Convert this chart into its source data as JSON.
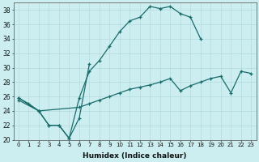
{
  "xlabel": "Humidex (Indice chaleur)",
  "background_color": "#cceef0",
  "line_color": "#1a6b6b",
  "xlim": [
    -0.5,
    23.5
  ],
  "ylim": [
    20,
    39
  ],
  "xticks": [
    0,
    1,
    2,
    3,
    4,
    5,
    6,
    7,
    8,
    9,
    10,
    11,
    12,
    13,
    14,
    15,
    16,
    17,
    18,
    19,
    20,
    21,
    22,
    23
  ],
  "yticks": [
    20,
    22,
    24,
    26,
    28,
    30,
    32,
    34,
    36,
    38
  ],
  "curves": [
    {
      "x": [
        0,
        1,
        2,
        3,
        4,
        5,
        6,
        7,
        8,
        9,
        10,
        11,
        12,
        13,
        14,
        15,
        16,
        17,
        18
      ],
      "y": [
        25.8,
        25.0,
        24.0,
        22.0,
        22.0,
        20.2,
        25.8,
        29.5,
        31.0,
        33.0,
        35.0,
        36.5,
        37.0,
        38.5,
        38.2,
        38.5,
        37.5,
        37.0,
        34.0
      ]
    },
    {
      "x": [
        0,
        2,
        3,
        4,
        5,
        6,
        7
      ],
      "y": [
        25.8,
        24.0,
        22.0,
        22.0,
        20.2,
        23.0,
        30.5
      ]
    },
    {
      "x": [
        0,
        2,
        6,
        7,
        8,
        9,
        10,
        11,
        12,
        13,
        14,
        15,
        16,
        17,
        18,
        19,
        20,
        21,
        22,
        23
      ],
      "y": [
        25.5,
        24.0,
        24.5,
        25.0,
        25.5,
        26.0,
        26.5,
        27.0,
        27.3,
        27.6,
        28.0,
        28.5,
        26.8,
        27.5,
        28.0,
        28.5,
        28.8,
        26.5,
        29.5,
        29.2
      ]
    }
  ]
}
